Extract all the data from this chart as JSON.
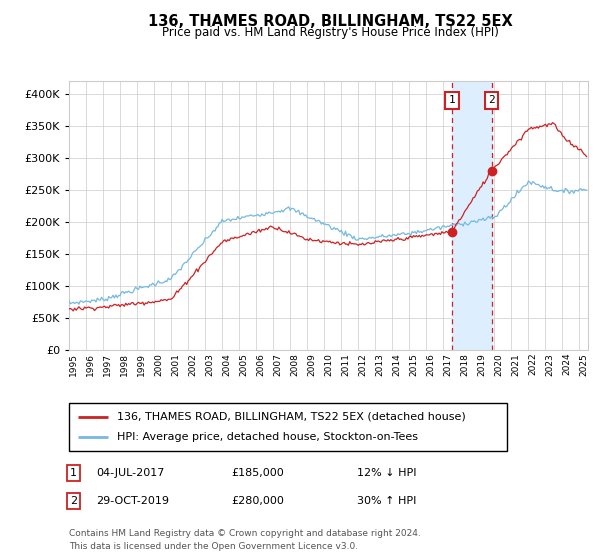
{
  "title": "136, THAMES ROAD, BILLINGHAM, TS22 5EX",
  "subtitle": "Price paid vs. HM Land Registry's House Price Index (HPI)",
  "ylabel_ticks": [
    "£0",
    "£50K",
    "£100K",
    "£150K",
    "£200K",
    "£250K",
    "£300K",
    "£350K",
    "£400K"
  ],
  "ytick_vals": [
    0,
    50000,
    100000,
    150000,
    200000,
    250000,
    300000,
    350000,
    400000
  ],
  "ylim": [
    0,
    420000
  ],
  "sale1_year": 2017.5,
  "sale1_price": 185000,
  "sale2_year": 2019.83,
  "sale2_price": 280000,
  "legend_line1": "136, THAMES ROAD, BILLINGHAM, TS22 5EX (detached house)",
  "legend_line2": "HPI: Average price, detached house, Stockton-on-Tees",
  "row1_num": "1",
  "row1_date": "04-JUL-2017",
  "row1_price": "£185,000",
  "row1_hpi": "12% ↓ HPI",
  "row2_num": "2",
  "row2_date": "29-OCT-2019",
  "row2_price": "£280,000",
  "row2_hpi": "30% ↑ HPI",
  "footer_line1": "Contains HM Land Registry data © Crown copyright and database right 2024.",
  "footer_line2": "This data is licensed under the Open Government Licence v3.0.",
  "hpi_color": "#74b9e0",
  "price_color": "#cc2222",
  "vline_color": "#cc2222",
  "highlight_color": "#ddeeff",
  "box_color": "#cc2222",
  "grid_color": "#cccccc",
  "xlim_left": 1995,
  "xlim_right": 2025.5
}
